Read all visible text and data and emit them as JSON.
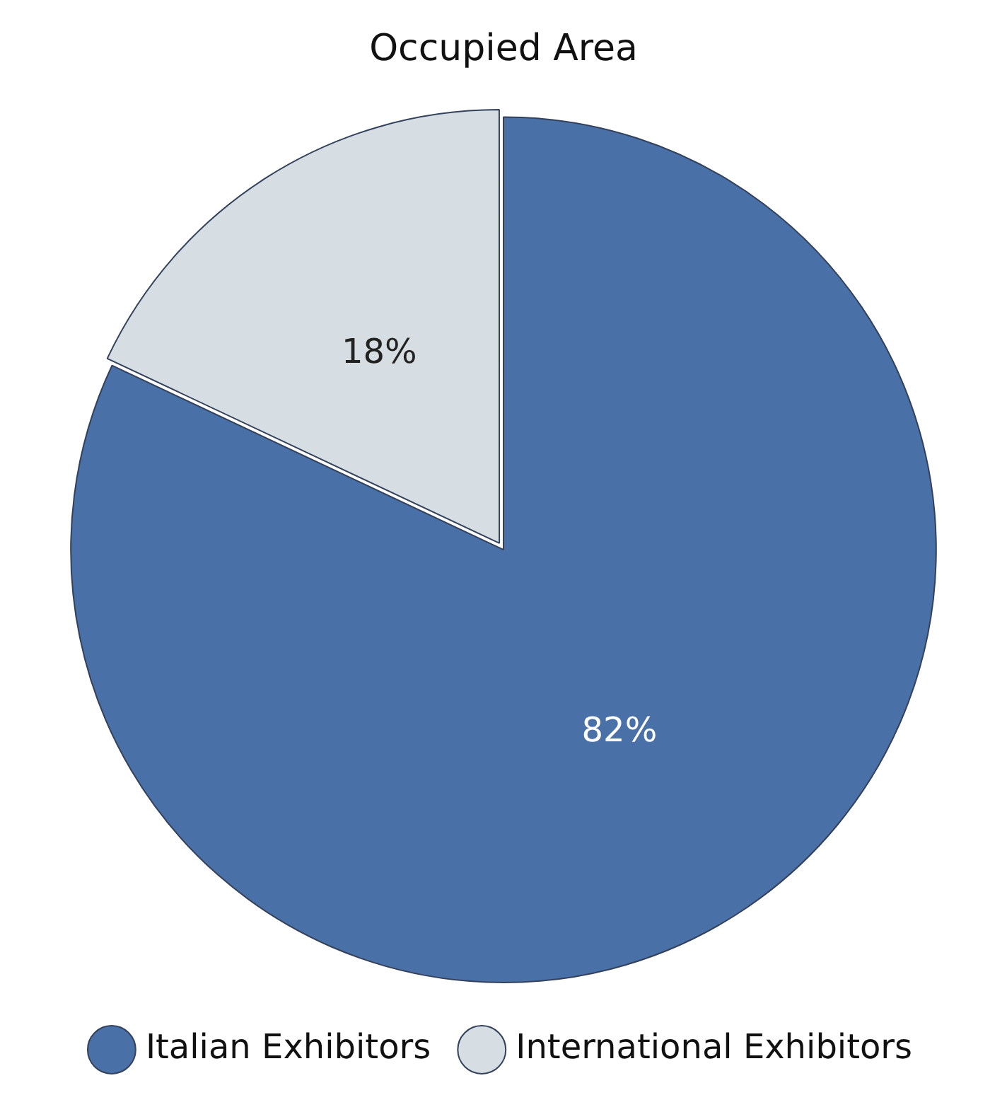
{
  "chart_data": {
    "type": "pie",
    "title": "Occupied Area",
    "categories": [
      "Italian Exhibitors",
      "International Exhibitors"
    ],
    "values": [
      82,
      18
    ],
    "colors": [
      "#4a70a8",
      "#d6dee3"
    ],
    "value_labels": [
      "82%",
      "18%"
    ],
    "legend": "bottom"
  }
}
